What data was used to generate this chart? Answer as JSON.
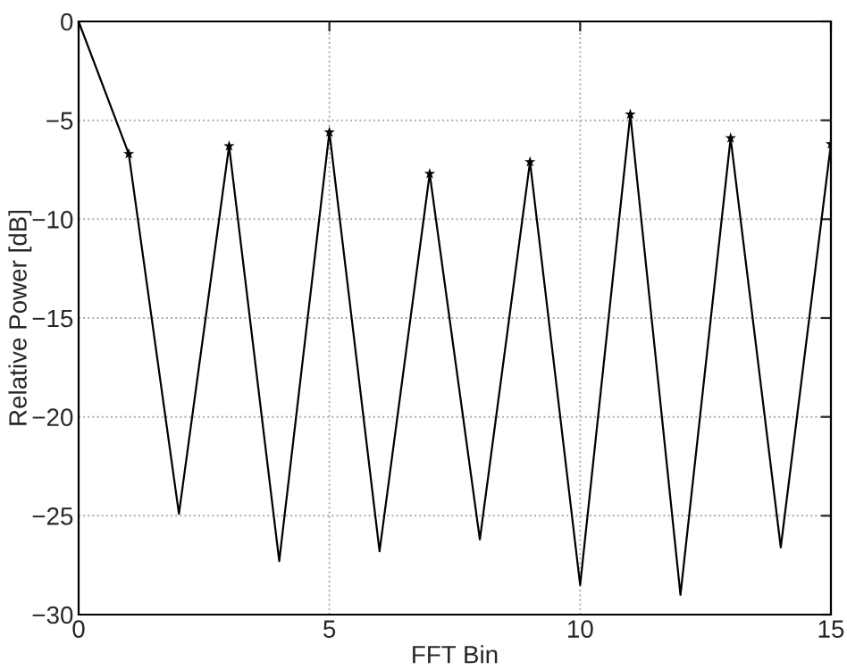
{
  "chart_data": {
    "type": "line",
    "xlabel": "FFT Bin",
    "ylabel": "Relative Power [dB]",
    "x": [
      0,
      1,
      2,
      3,
      4,
      5,
      6,
      7,
      8,
      9,
      10,
      11,
      12,
      13,
      14,
      15
    ],
    "series": [
      {
        "color": "#000000",
        "marker": "none",
        "values": [
          0,
          -6.7,
          -24.9,
          -6.3,
          -27.3,
          -5.6,
          -26.8,
          -7.7,
          -26.2,
          -7.1,
          -28.5,
          -4.7,
          -29.0,
          -5.9,
          -26.6,
          -6.2
        ]
      },
      {
        "type": "scatter",
        "color": "#000000",
        "marker": "star",
        "x": [
          1,
          3,
          5,
          7,
          9,
          11,
          13,
          15
        ],
        "values": [
          -6.7,
          -6.3,
          -5.6,
          -7.7,
          -7.1,
          -4.7,
          -5.9,
          -6.2
        ]
      }
    ],
    "xlim": [
      0,
      15
    ],
    "xticks": [
      0,
      5,
      10,
      15
    ],
    "ylim": [
      -30,
      0
    ],
    "yticks": [
      -30,
      -25,
      -20,
      -15,
      -10,
      -5,
      0
    ],
    "grid": true
  }
}
